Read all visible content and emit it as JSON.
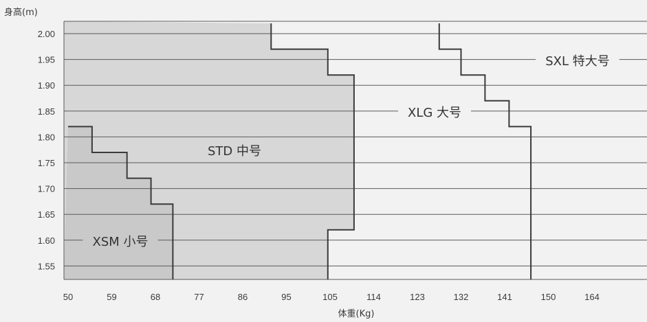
{
  "chart_data": {
    "type": "area",
    "ylabel": "身高(m)",
    "xlabel": "体重(Kg)",
    "x_ticks": [
      "50",
      "59",
      "68",
      "77",
      "86",
      "95",
      "105",
      "114",
      "123",
      "132",
      "141",
      "150",
      "164"
    ],
    "y_ticks": [
      "2.00",
      "1.95",
      "1.90",
      "1.85",
      "1.80",
      "1.75",
      "1.70",
      "1.65",
      "1.60",
      "1.55"
    ],
    "grid": true,
    "regions": [
      {
        "label": "XSM 小号",
        "fill": "#c9c9c9"
      },
      {
        "label": "STD 中号",
        "fill": "#d7d7d7"
      },
      {
        "label": "XLG 大号",
        "fill": "#f2f2f2"
      },
      {
        "label": "SXL 特大号",
        "fill": "#f2f2f2"
      }
    ],
    "boundaries": [
      {
        "name": "xsm-std-boundary",
        "steps": [
          {
            "x_tick": 0,
            "y_tick": 3.6
          },
          {
            "x_tick": 0.55,
            "y_tick": 3.6
          },
          {
            "x_tick": 0.55,
            "y_tick": 4.6
          },
          {
            "x_tick": 1.35,
            "y_tick": 4.6
          },
          {
            "x_tick": 1.35,
            "y_tick": 5.6
          },
          {
            "x_tick": 1.9,
            "y_tick": 5.6
          },
          {
            "x_tick": 1.9,
            "y_tick": 6.6
          },
          {
            "x_tick": 2.4,
            "y_tick": 6.6
          },
          {
            "x_tick": 2.4,
            "y_tick": 10
          }
        ]
      },
      {
        "name": "std-xlg-boundary",
        "steps": [
          {
            "x_tick": 4.65,
            "y_tick": -0.4
          },
          {
            "x_tick": 4.65,
            "y_tick": 0.6
          },
          {
            "x_tick": 5.95,
            "y_tick": 0.6
          },
          {
            "x_tick": 5.95,
            "y_tick": 1.6
          },
          {
            "x_tick": 6.55,
            "y_tick": 1.6
          },
          {
            "x_tick": 6.55,
            "y_tick": 7.6
          },
          {
            "x_tick": 5.95,
            "y_tick": 7.6
          },
          {
            "x_tick": 5.95,
            "y_tick": 10
          }
        ]
      },
      {
        "name": "xlg-sxl-boundary",
        "steps": [
          {
            "x_tick": 8.5,
            "y_tick": -0.4
          },
          {
            "x_tick": 8.5,
            "y_tick": 0.6
          },
          {
            "x_tick": 9.0,
            "y_tick": 0.6
          },
          {
            "x_tick": 9.0,
            "y_tick": 1.6
          },
          {
            "x_tick": 9.55,
            "y_tick": 1.6
          },
          {
            "x_tick": 9.55,
            "y_tick": 2.6
          },
          {
            "x_tick": 10.1,
            "y_tick": 2.6
          },
          {
            "x_tick": 10.1,
            "y_tick": 3.6
          },
          {
            "x_tick": 10.6,
            "y_tick": 3.6
          },
          {
            "x_tick": 10.6,
            "y_tick": 10
          }
        ]
      }
    ]
  },
  "colors": {
    "background": "#f2f2f2",
    "grid": "#5a5a5a",
    "boundary": "#3a3a3a",
    "xsm_fill": "#c9c9c9",
    "std_fill": "#d7d7d7",
    "text": "#3a3a3a"
  }
}
